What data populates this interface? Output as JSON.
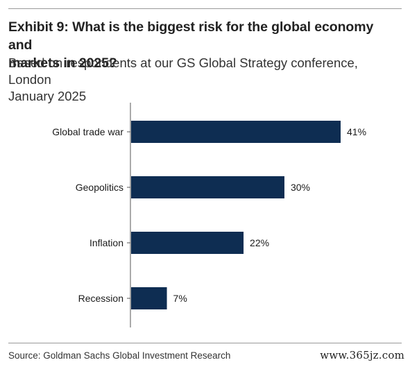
{
  "header": {
    "title_line1": "Exhibit 9: What is the biggest risk for the global economy and",
    "title_line2": "markets in 2025?",
    "subtitle_line1": "Based on respondents at our GS Global Strategy conference, London",
    "subtitle_line2": "January 2025"
  },
  "chart_data": {
    "type": "bar",
    "orientation": "horizontal",
    "categories": [
      "Global trade war",
      "Geopolitics",
      "Inflation",
      "Recession"
    ],
    "values": [
      41,
      30,
      22,
      7
    ],
    "value_labels": [
      "41%",
      "30%",
      "22%",
      "7%"
    ],
    "unit": "%",
    "bar_color": "#0e2d52",
    "xlim": [
      0,
      41
    ],
    "grid": false,
    "legend": "none"
  },
  "footer": {
    "source": "Source: Goldman Sachs Global Investment Research",
    "watermark": "www.365jz.com"
  }
}
